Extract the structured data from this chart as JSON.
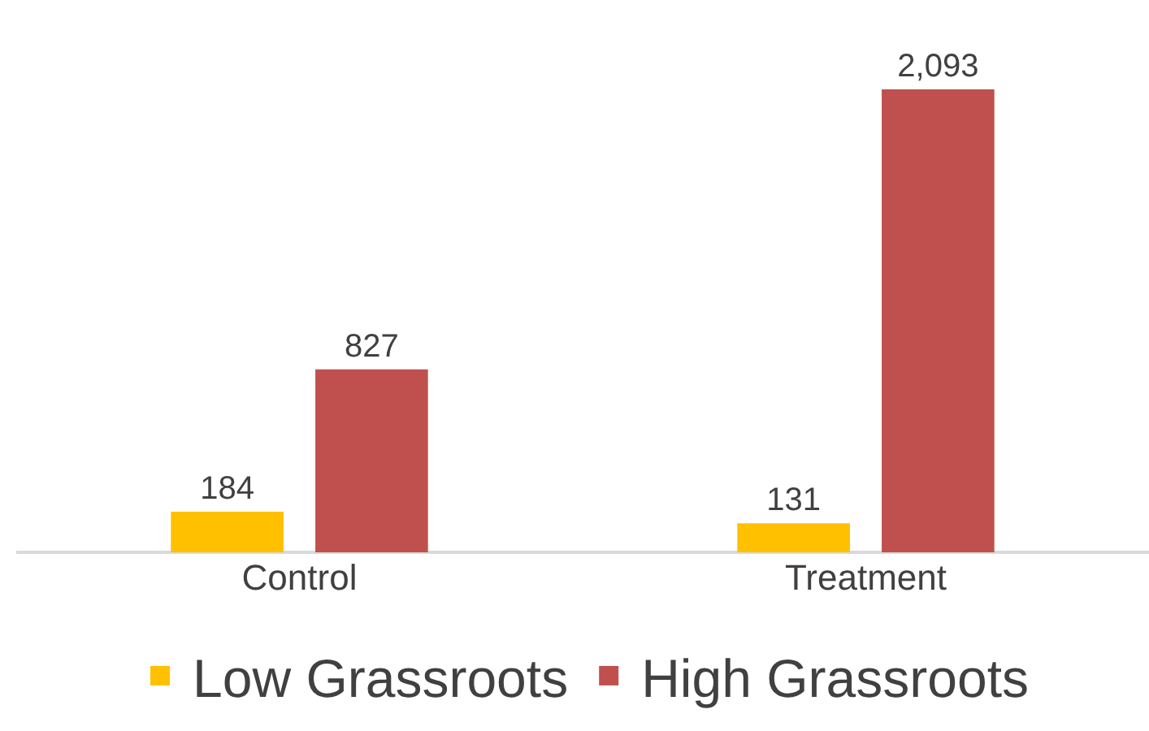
{
  "chart_data": {
    "type": "bar",
    "categories": [
      "Control",
      "Treatment"
    ],
    "series": [
      {
        "name": "Low Grassroots",
        "color": "#ffc000",
        "values": [
          184,
          131
        ],
        "value_labels": [
          "184",
          "131"
        ]
      },
      {
        "name": "High Grassroots",
        "color": "#c0504d",
        "values": [
          827,
          2093
        ],
        "value_labels": [
          "827",
          "2,093"
        ]
      }
    ],
    "legend": "bottom",
    "grid": false
  }
}
